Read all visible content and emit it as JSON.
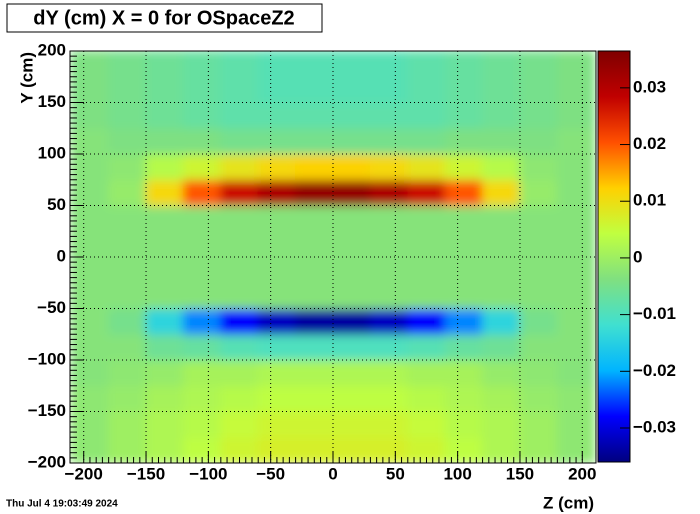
{
  "chart_data": {
    "type": "heatmap",
    "title": "dY (cm) X = 0 for OSpaceZ2",
    "x_label": "Z (cm)",
    "y_label": "Y (cm)",
    "timestamp": "Thu Jul  4 19:03:49 2024",
    "xlim": [
      -211,
      211
    ],
    "ylim": [
      -200,
      200
    ],
    "zlim": [
      -0.036,
      0.0365
    ],
    "xticks": [
      {
        "value": -200,
        "label": "−200"
      },
      {
        "value": -150,
        "label": "−150"
      },
      {
        "value": -100,
        "label": "−100"
      },
      {
        "value": -50,
        "label": "−50"
      },
      0,
      50,
      100,
      150,
      200
    ],
    "yticks": [
      {
        "value": -200,
        "label": "−200"
      },
      {
        "value": -150,
        "label": "−150"
      },
      {
        "value": -100,
        "label": "−100"
      },
      {
        "value": -50,
        "label": "−50"
      },
      0,
      50,
      100,
      150,
      200
    ],
    "zticks": [
      {
        "value": -0.03,
        "label": "−0.03"
      },
      {
        "value": -0.02,
        "label": "−0.02"
      },
      {
        "value": -0.01,
        "label": "−0.01"
      },
      0,
      0.01,
      0.02,
      0.03
    ],
    "grid": true,
    "colorscale": [
      "#00007f",
      "#0000ff",
      "#00b4ff",
      "#40e0d0",
      "#80e080",
      "#c0ff40",
      "#ffd000",
      "#ff5000",
      "#c00000",
      "#7f0000"
    ],
    "x_bins": [
      -210,
      -180,
      -150,
      -120,
      -90,
      -60,
      -30,
      0,
      30,
      60,
      90,
      120,
      150,
      180,
      210
    ],
    "y_bins": [
      -200,
      -175,
      -150,
      -125,
      -100,
      -75,
      -50,
      -25,
      0,
      25,
      50,
      75,
      100,
      125,
      150,
      175,
      200
    ],
    "z": [
      [
        -0.002,
        0.0,
        0.002,
        0.004,
        0.006,
        0.007,
        0.007,
        0.007,
        0.007,
        0.006,
        0.004,
        0.002,
        0.0,
        -0.002
      ],
      [
        -0.002,
        0.0,
        0.002,
        0.003,
        0.005,
        0.006,
        0.006,
        0.006,
        0.006,
        0.005,
        0.003,
        0.002,
        0.0,
        -0.002
      ],
      [
        -0.002,
        -0.001,
        0.001,
        0.002,
        0.003,
        0.004,
        0.004,
        0.004,
        0.004,
        0.003,
        0.002,
        0.001,
        -0.001,
        -0.002
      ],
      [
        -0.003,
        -0.002,
        -0.001,
        0.001,
        0.001,
        0.002,
        0.002,
        0.002,
        0.002,
        0.001,
        0.001,
        -0.001,
        -0.002,
        -0.003
      ],
      [
        -0.003,
        -0.003,
        -0.006,
        -0.007,
        -0.009,
        -0.01,
        -0.01,
        -0.01,
        -0.01,
        -0.009,
        -0.007,
        -0.006,
        -0.003,
        -0.003
      ],
      [
        -0.003,
        -0.005,
        -0.014,
        -0.022,
        -0.028,
        -0.032,
        -0.034,
        -0.034,
        -0.032,
        -0.028,
        -0.022,
        -0.014,
        -0.005,
        -0.003
      ],
      [
        -0.003,
        -0.003,
        -0.003,
        -0.003,
        -0.003,
        -0.003,
        -0.003,
        -0.003,
        -0.003,
        -0.003,
        -0.003,
        -0.003,
        -0.003,
        -0.003
      ],
      [
        -0.003,
        -0.003,
        -0.003,
        -0.003,
        -0.003,
        -0.003,
        -0.003,
        -0.003,
        -0.003,
        -0.003,
        -0.003,
        -0.003,
        -0.003,
        -0.003
      ],
      [
        -0.003,
        -0.003,
        -0.003,
        -0.003,
        -0.003,
        -0.003,
        -0.003,
        -0.003,
        -0.003,
        -0.003,
        -0.003,
        -0.003,
        -0.003,
        -0.003
      ],
      [
        -0.003,
        -0.003,
        -0.003,
        -0.003,
        -0.003,
        -0.003,
        -0.003,
        -0.003,
        -0.003,
        -0.003,
        -0.003,
        -0.003,
        -0.003,
        -0.003
      ],
      [
        -0.003,
        -0.001,
        0.011,
        0.02,
        0.027,
        0.031,
        0.034,
        0.034,
        0.031,
        0.027,
        0.02,
        0.011,
        -0.001,
        -0.003
      ],
      [
        -0.003,
        -0.002,
        0.003,
        0.006,
        0.009,
        0.011,
        0.012,
        0.012,
        0.011,
        0.009,
        0.006,
        0.003,
        -0.002,
        -0.003
      ],
      [
        -0.003,
        -0.004,
        -0.004,
        -0.004,
        -0.005,
        -0.005,
        -0.005,
        -0.005,
        -0.005,
        -0.005,
        -0.004,
        -0.004,
        -0.004,
        -0.003
      ],
      [
        -0.004,
        -0.005,
        -0.006,
        -0.007,
        -0.008,
        -0.008,
        -0.008,
        -0.008,
        -0.008,
        -0.008,
        -0.007,
        -0.006,
        -0.005,
        -0.004
      ],
      [
        -0.004,
        -0.005,
        -0.006,
        -0.007,
        -0.008,
        -0.009,
        -0.009,
        -0.009,
        -0.009,
        -0.008,
        -0.007,
        -0.006,
        -0.005,
        -0.004
      ],
      [
        -0.004,
        -0.005,
        -0.006,
        -0.007,
        -0.008,
        -0.009,
        -0.009,
        -0.009,
        -0.009,
        -0.008,
        -0.007,
        -0.006,
        -0.005,
        -0.004
      ]
    ]
  }
}
